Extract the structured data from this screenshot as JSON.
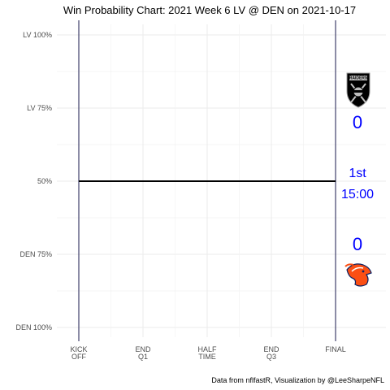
{
  "chart_data": {
    "type": "line",
    "title": "Win Probability Chart: 2021 Week 6 LV @ DEN on 2021-10-17",
    "y_ticks": [
      {
        "label": "LV 100%",
        "value": 0.0
      },
      {
        "label": "LV 75%",
        "value": 0.25
      },
      {
        "label": "50%",
        "value": 0.5
      },
      {
        "label": "DEN 75%",
        "value": 0.75
      },
      {
        "label": "DEN 100%",
        "value": 1.0
      }
    ],
    "x_ticks": [
      {
        "line1": "KICK",
        "line2": "OFF",
        "value": 0
      },
      {
        "line1": "END",
        "line2": "Q1",
        "value": 900
      },
      {
        "line1": "HALF",
        "line2": "TIME",
        "value": 1800
      },
      {
        "line1": "END",
        "line2": "Q3",
        "value": 2700
      },
      {
        "line1": "FINAL",
        "line2": "",
        "value": 3600
      }
    ],
    "xlim": [
      0,
      3600
    ],
    "ylim": [
      0,
      1
    ],
    "series": [
      {
        "x": [
          0,
          3600
        ],
        "values": [
          0.5,
          0.5
        ],
        "color": "#000000"
      }
    ],
    "grid": true,
    "vertical_lines": [
      0,
      3600
    ],
    "away_team": "LV",
    "home_team": "DEN",
    "away_score": "0",
    "home_score": "0",
    "quarter": "1st",
    "clock": "15:00",
    "score_color": "#0000ff",
    "caption": "Data from nflfastR, Visualization by @LeeSharpeNFL"
  },
  "logos": {
    "away": {
      "name": "raiders-logo-icon",
      "text": "RAIDERS",
      "color": "#000000"
    },
    "home": {
      "name": "broncos-logo-icon",
      "color": "#fb4f14"
    }
  }
}
